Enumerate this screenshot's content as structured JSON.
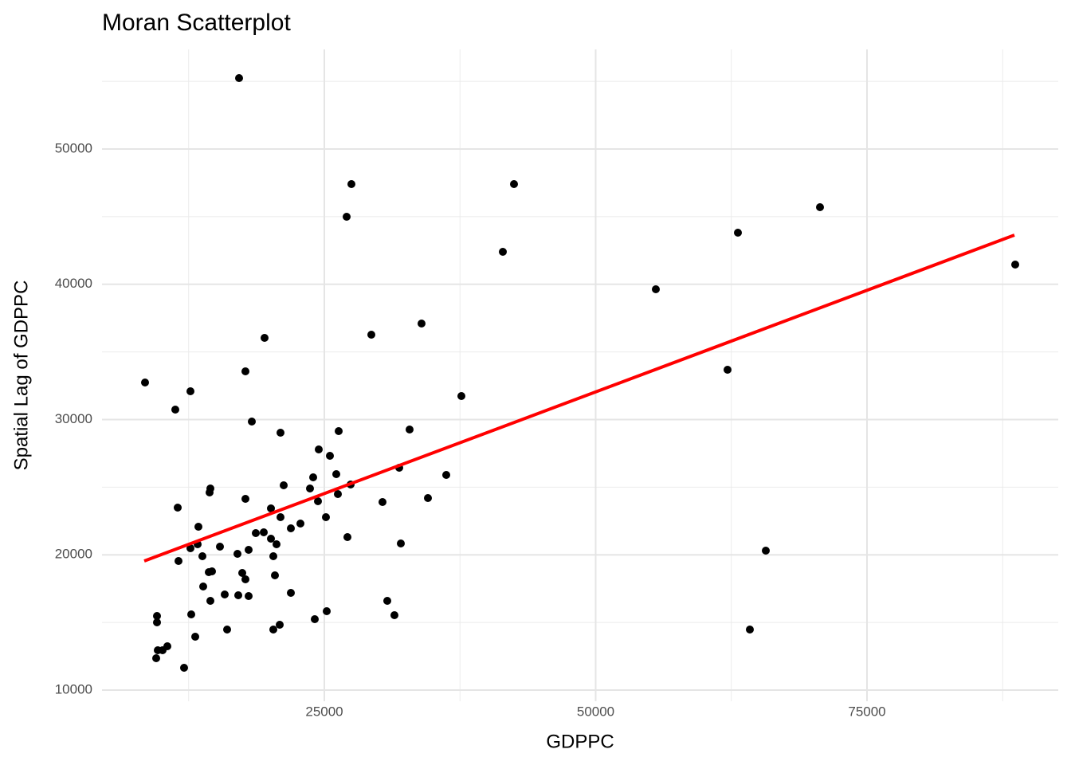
{
  "chart_data": {
    "type": "scatter",
    "title": "Moran Scatterplot",
    "x_label": "GDPPC",
    "y_label": "Spatial Lag of GDPPC",
    "x": [
      17144,
      8480,
      12665,
      11270,
      17731,
      19493,
      18318,
      20962,
      27496,
      27056,
      42474,
      41446,
      29332,
      33957,
      37628,
      32856,
      26322,
      24486,
      25514,
      26101,
      23972,
      23678,
      26248,
      27423,
      31901,
      36233,
      21256,
      14501,
      14428,
      17731,
      11490,
      24413,
      30360,
      34545,
      20081,
      20962,
      25147,
      22797,
      21916,
      13399,
      18685,
      19419,
      20081,
      27129,
      20595,
      32048,
      13326,
      12665,
      15382,
      16997,
      18025,
      13766,
      20301,
      11564,
      14354,
      14648,
      17438,
      17731,
      20448,
      13839,
      21916,
      15822,
      14501,
      17071,
      18025,
      30800,
      12738,
      9582,
      9582,
      25220,
      31460,
      24119,
      20889,
      20301,
      16042,
      13106,
      10536,
      9655,
      10095,
      9508,
      12077,
      55543,
      62151,
      63106,
      70668,
      88656,
      65676,
      64207
    ],
    "values": [
      55243,
      32740,
      32090,
      30736,
      33564,
      36038,
      29853,
      29028,
      47408,
      44993,
      47408,
      42401,
      36274,
      37099,
      31738,
      29264,
      29146,
      27791,
      27320,
      25965,
      25729,
      24904,
      24492,
      25199,
      26436,
      25906,
      25140,
      24904,
      24610,
      24139,
      23490,
      23962,
      23903,
      24197,
      23431,
      22784,
      22784,
      22312,
      21959,
      22077,
      21605,
      21664,
      21193,
      21311,
      20781,
      20840,
      20781,
      20486,
      20604,
      20074,
      20368,
      19897,
      19897,
      19544,
      18719,
      18778,
      18660,
      18189,
      18483,
      17658,
      17187,
      17069,
      16598,
      17010,
      16951,
      16598,
      15597,
      15479,
      15007,
      15832,
      15538,
      15243,
      14831,
      14477,
      14477,
      13947,
      13240,
      12946,
      12946,
      12356,
      11649,
      39632,
      33682,
      43815,
      45700,
      41458,
      20309,
      14477
    ],
    "color": "#000000",
    "trend_line": {
      "x": [
        8407,
        88583
      ],
      "values": [
        19544,
        43638
      ],
      "color": "#ff0000"
    },
    "xlim": [
      4515,
      92621
    ],
    "ylim": [
      9175,
      57364
    ],
    "xticks": [
      25000,
      50000,
      75000
    ],
    "yticks": [
      10000,
      20000,
      30000,
      40000,
      50000
    ],
    "grid": true
  }
}
